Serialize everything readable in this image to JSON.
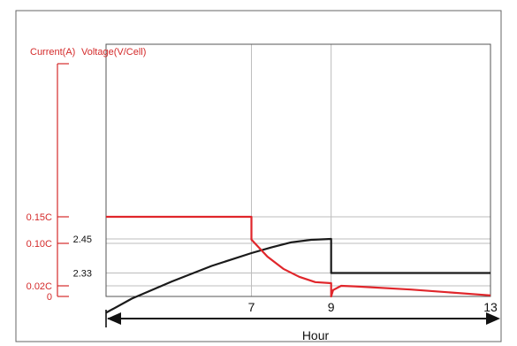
{
  "chart_data": {
    "type": "line",
    "title": "",
    "xlabel": "Hour",
    "xlim": [
      3.35,
      13
    ],
    "x_ticks": [
      7,
      9,
      13
    ],
    "grid": true,
    "current_axis": {
      "label": "Current(A)",
      "ticks": [
        {
          "value": 0.15,
          "label": "0.15C"
        },
        {
          "value": 0.1,
          "label": "0.10C"
        },
        {
          "value": 0.02,
          "label": "0.02C"
        },
        {
          "value": 0,
          "label": "0"
        }
      ]
    },
    "voltage_axis": {
      "label": "Voltage(V/Cell)",
      "ticks": [
        {
          "value": 2.45,
          "label": "2.45"
        },
        {
          "value": 2.33,
          "label": "2.33"
        }
      ]
    },
    "series": [
      {
        "axis": "voltage",
        "color": "#1a1a1a",
        "points": [
          [
            3.35,
            2.19
          ],
          [
            4,
            2.24
          ],
          [
            5,
            2.3
          ],
          [
            6,
            2.355
          ],
          [
            7,
            2.4
          ],
          [
            7.5,
            2.42
          ],
          [
            8,
            2.438
          ],
          [
            8.5,
            2.447
          ],
          [
            9,
            2.45
          ],
          [
            9,
            2.33
          ],
          [
            13,
            2.33
          ]
        ]
      },
      {
        "axis": "current",
        "color": "#e0262b",
        "points": [
          [
            3.35,
            0.15
          ],
          [
            7,
            0.15
          ],
          [
            7,
            0.107
          ],
          [
            7.4,
            0.075
          ],
          [
            7.8,
            0.052
          ],
          [
            8.2,
            0.037
          ],
          [
            8.6,
            0.027
          ],
          [
            9,
            0.025
          ],
          [
            9,
            0
          ],
          [
            9.05,
            0.012
          ],
          [
            9.25,
            0.02
          ],
          [
            9.6,
            0.019
          ],
          [
            11,
            0.013
          ],
          [
            13,
            0.002
          ]
        ]
      }
    ],
    "colors": {
      "current_axis": "#d42a2a",
      "grid": "#bcbcbc",
      "frame": "#555555",
      "arrow": "#111111"
    }
  }
}
